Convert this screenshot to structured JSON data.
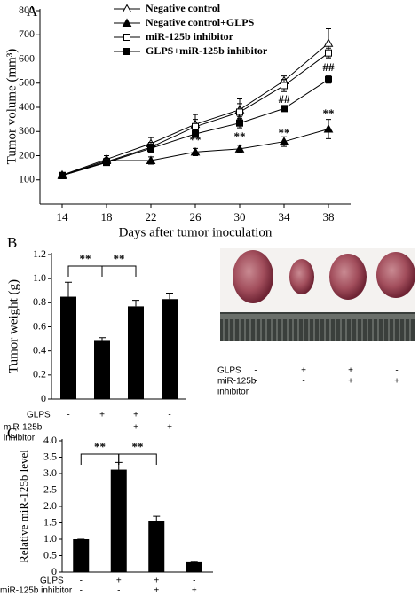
{
  "chart_data": [
    {
      "type": "line",
      "panel": "A",
      "xlabel": "Days after tumor inoculation",
      "ylabel": "Tumor volume (mm³)",
      "x": [
        14,
        18,
        22,
        26,
        30,
        34,
        38
      ],
      "xlim": [
        12,
        40
      ],
      "xticks": [
        14,
        18,
        22,
        26,
        30,
        34,
        38
      ],
      "ylim": [
        0,
        800
      ],
      "yticks": [
        100,
        200,
        300,
        400,
        500,
        600,
        700,
        800
      ],
      "series": [
        {
          "name": "Negative control",
          "color": "#000000",
          "marker": "triangle-open",
          "values": [
            120,
            185,
            250,
            330,
            390,
            510,
            665
          ],
          "errors": [
            10,
            15,
            25,
            40,
            45,
            20,
            60
          ]
        },
        {
          "name": "Negative control+GLPS",
          "color": "#000000",
          "marker": "triangle-filled",
          "values": [
            118,
            180,
            180,
            215,
            228,
            258,
            310
          ],
          "errors": [
            10,
            10,
            15,
            15,
            15,
            20,
            40
          ]
        },
        {
          "name": "miR-125b inhibitor",
          "color": "#000000",
          "marker": "square-open",
          "values": [
            118,
            175,
            235,
            320,
            380,
            490,
            625
          ],
          "errors": [
            10,
            12,
            20,
            30,
            35,
            25,
            20
          ]
        },
        {
          "name": "GLPS+miR-125b inhibitor",
          "color": "#000000",
          "marker": "square-filled",
          "values": [
            118,
            172,
            230,
            290,
            335,
            395,
            515
          ],
          "errors": [
            10,
            10,
            15,
            15,
            20,
            10,
            15
          ]
        }
      ],
      "annotations": [
        "**",
        "**",
        "**",
        "**",
        "**",
        "#",
        "##",
        "##"
      ]
    },
    {
      "type": "bar",
      "panel": "B",
      "ylabel": "Tumor weight (g)",
      "color": "#000000",
      "categories": [
        null,
        null,
        null,
        null
      ],
      "values": [
        0.85,
        0.49,
        0.77,
        0.83
      ],
      "errors": [
        0.12,
        0.02,
        0.05,
        0.05
      ],
      "ylim": [
        0,
        1.2
      ],
      "yticks": [
        0,
        0.2,
        0.4,
        0.6,
        0.8,
        {
          "value": 1.0,
          "label": "1.0"
        },
        1.2
      ],
      "annotations": [
        "**",
        "**"
      ],
      "conditions": [
        {
          "label_lines": [
            "GLPS"
          ],
          "signs": [
            "-",
            "+",
            "+",
            "-"
          ]
        },
        {
          "label_lines": [
            "miR-125b",
            "inhibitor"
          ],
          "signs": [
            "-",
            "-",
            "+",
            "+"
          ]
        }
      ]
    },
    {
      "type": "bar",
      "panel": "C",
      "ylabel": "Relative miR-125b level",
      "color": "#000000",
      "categories": [
        null,
        null,
        null,
        null
      ],
      "values": [
        1.0,
        3.12,
        1.55,
        0.3
      ],
      "errors": [
        0,
        0.22,
        0.15,
        0.02
      ],
      "ylim": [
        0,
        4.0
      ],
      "yticks": [
        0,
        0.5,
        {
          "value": 1.0,
          "label": "1.0"
        },
        1.5,
        {
          "value": 2.0,
          "label": "2.0"
        },
        2.5,
        {
          "value": 3.0,
          "label": "3.0"
        },
        3.5,
        {
          "value": 4.0,
          "label": "4.0"
        }
      ],
      "annotations": [
        "**",
        "**"
      ],
      "conditions": [
        {
          "label_lines": [
            "GLPS"
          ],
          "signs": [
            "-",
            "+",
            "+",
            "-"
          ]
        },
        {
          "label_lines": [
            "miR-125b inhibitor"
          ],
          "signs": [
            "-",
            "-",
            "+",
            "+"
          ]
        }
      ]
    }
  ],
  "photo_conditions": [
    {
      "label_lines": [
        "GLPS"
      ],
      "signs": [
        "-",
        "+",
        "+",
        "-"
      ]
    },
    {
      "label_lines": [
        "miR-125b",
        "inhibitor"
      ],
      "signs": [
        "-",
        "-",
        "+",
        "+"
      ]
    }
  ]
}
